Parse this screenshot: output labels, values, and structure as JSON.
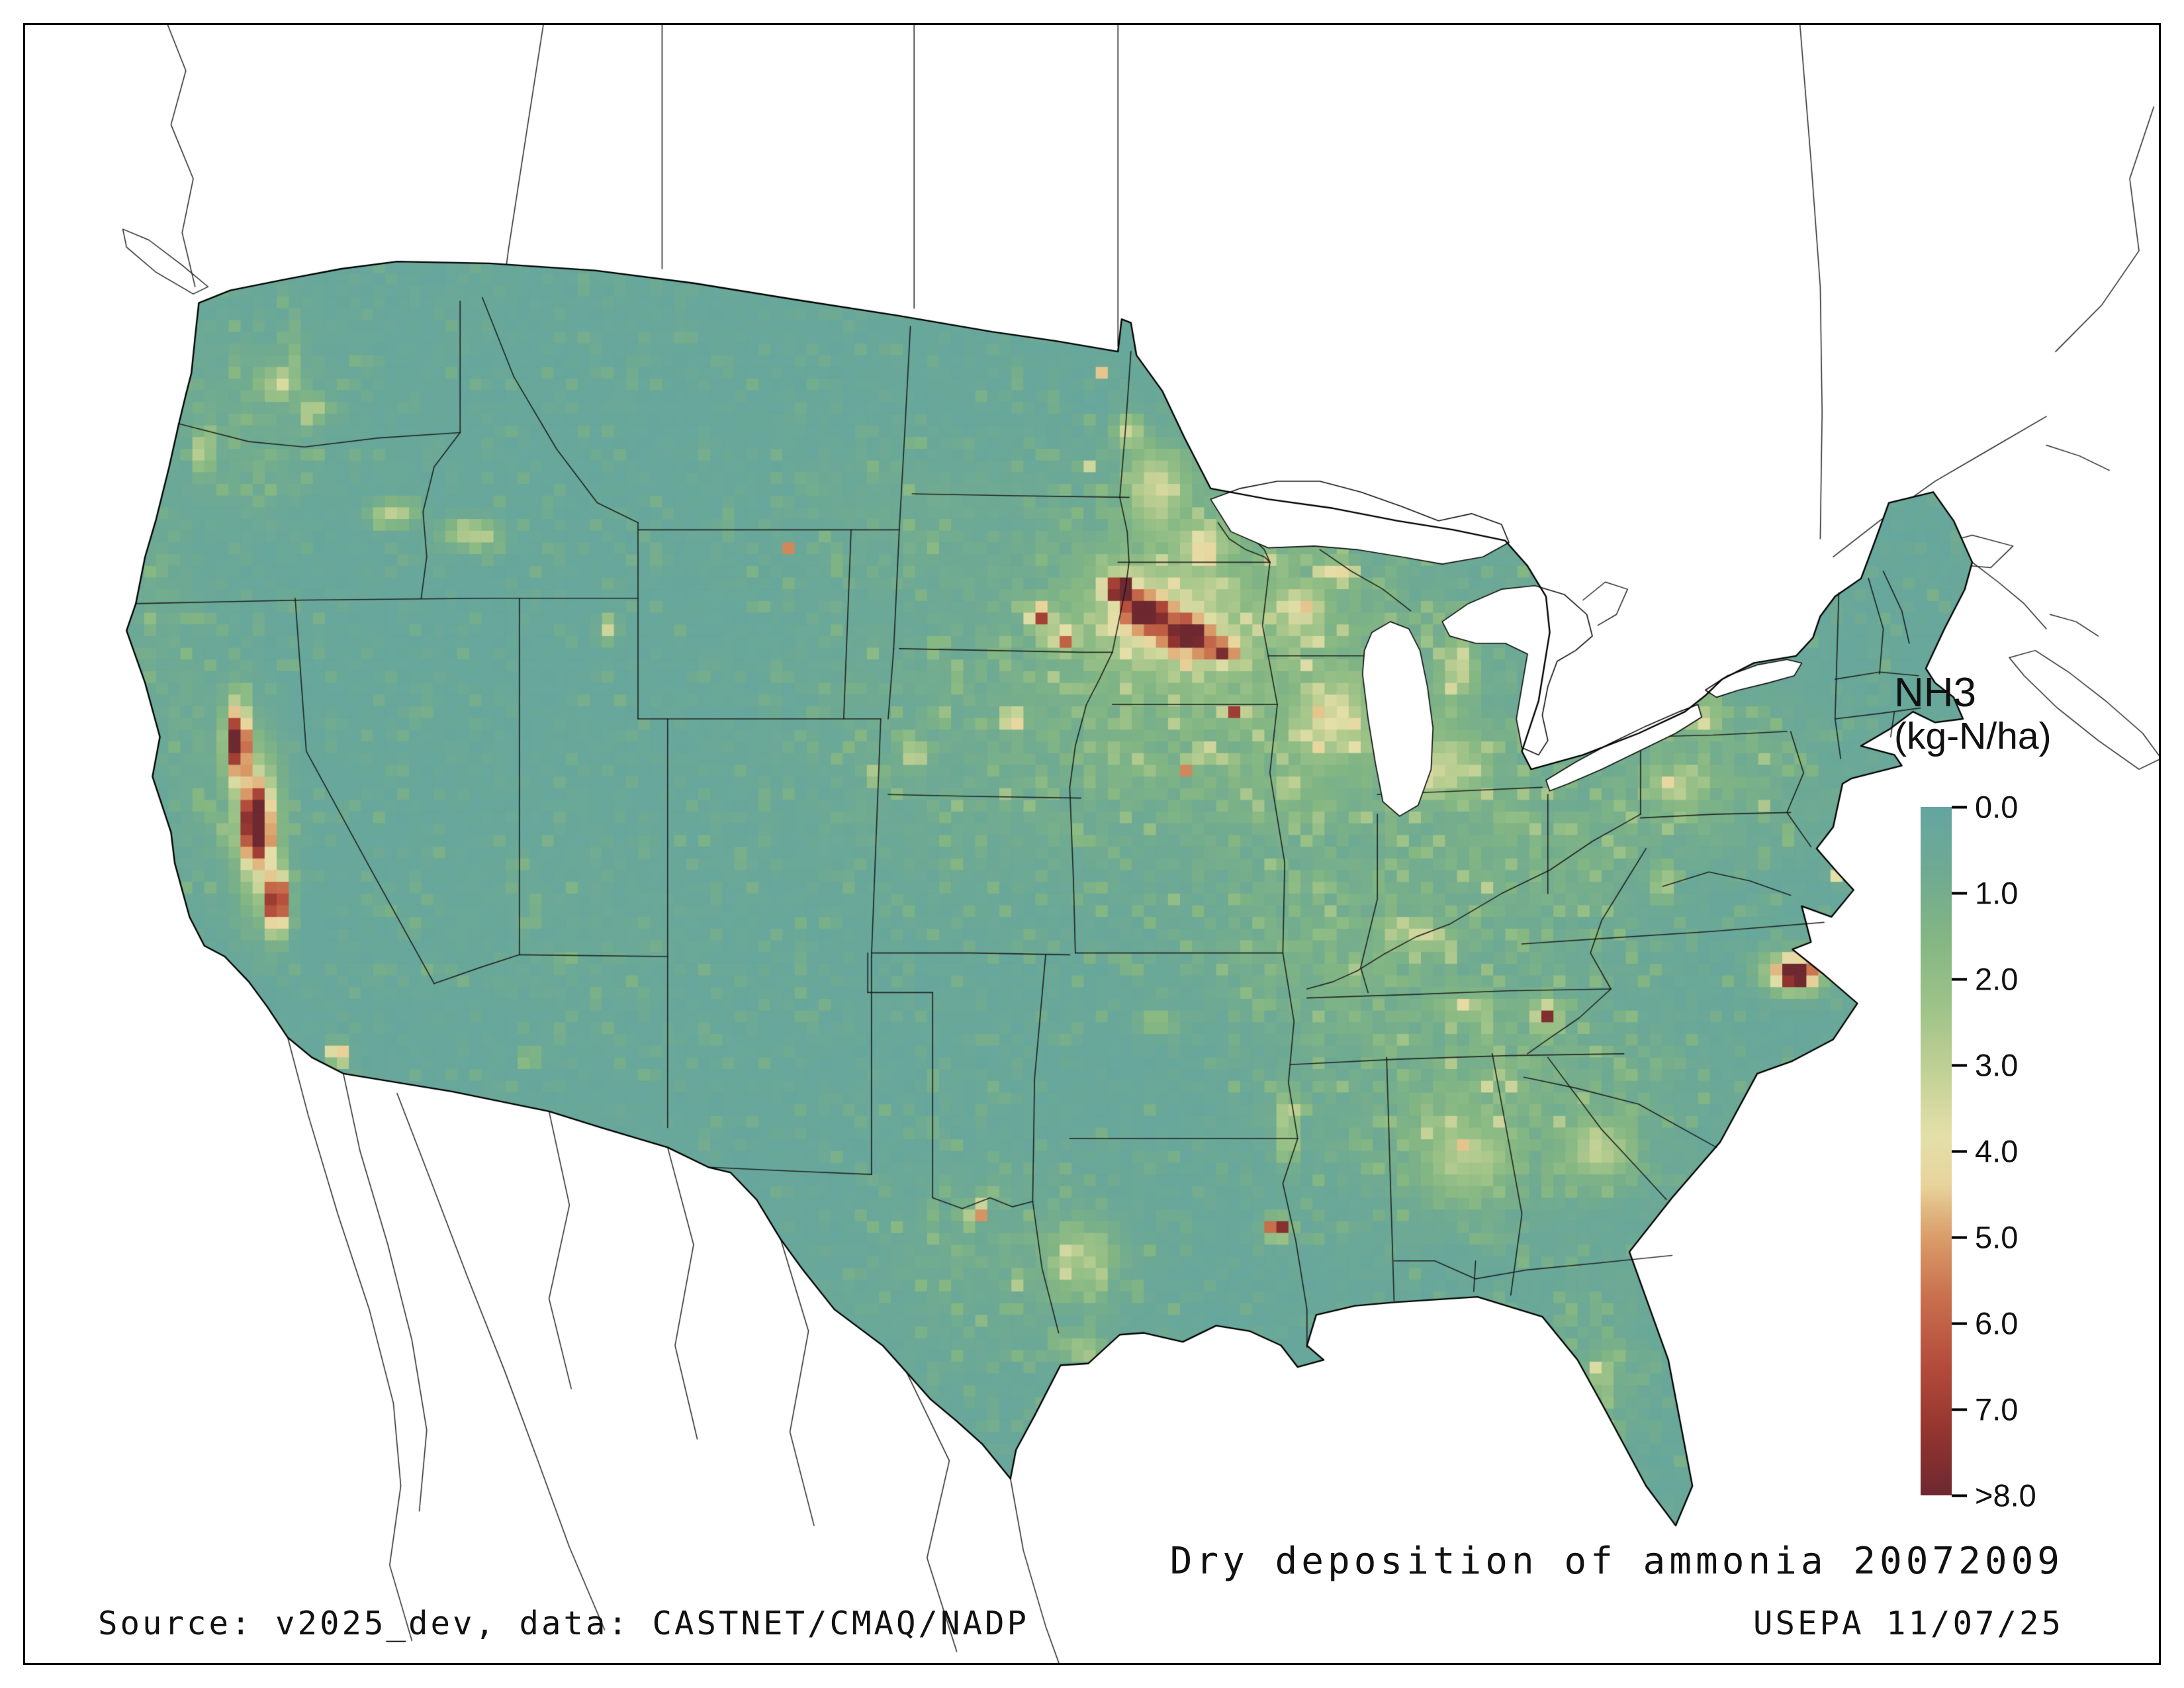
{
  "legend": {
    "title": "NH3",
    "units": "(kg-N/ha)",
    "ticks": [
      "0.0",
      "1.0",
      "2.0",
      "3.0",
      "4.0",
      "5.0",
      "6.0",
      "7.0",
      ">8.0"
    ],
    "value_range": [
      0,
      8
    ],
    "palette": [
      {
        "v": 0.0,
        "c": "#63a5a1"
      },
      {
        "v": 0.8,
        "c": "#6faa92"
      },
      {
        "v": 1.6,
        "c": "#83b683"
      },
      {
        "v": 2.4,
        "c": "#9cc288"
      },
      {
        "v": 3.2,
        "c": "#c0d094"
      },
      {
        "v": 4.0,
        "c": "#e4dfa9"
      },
      {
        "v": 4.6,
        "c": "#e8d49c"
      },
      {
        "v": 5.2,
        "c": "#dba06b"
      },
      {
        "v": 6.0,
        "c": "#c86f4d"
      },
      {
        "v": 6.8,
        "c": "#b44c3c"
      },
      {
        "v": 7.6,
        "c": "#94352f"
      },
      {
        "v": 8.4,
        "c": "#6d2830"
      }
    ]
  },
  "captions": {
    "title": "Dry deposition of ammonia 20072009",
    "source": "Source: v2025_dev, data: CASTNET/CMAQ/NADP",
    "agency": "USEPA 11/07/25"
  },
  "map": {
    "pollutant": "NH3",
    "quantity": "dry deposition",
    "period": "20072009",
    "base_value": 0.32,
    "ocean_color": "#ffffff",
    "hotspots": [
      [
        64,
        312,
        6,
        20,
        8.5
      ],
      [
        74,
        358,
        7,
        20,
        9.0
      ],
      [
        85,
        402,
        6,
        16,
        8.0
      ],
      [
        75,
        360,
        14,
        48,
        2.6
      ],
      [
        118,
        486,
        5,
        6,
        5.5
      ],
      [
        128,
        512,
        3,
        3,
        5.0
      ],
      [
        221,
        489,
        4,
        4,
        3.2
      ],
      [
        148,
        186,
        13,
        7,
        2.8
      ],
      [
        190,
        197,
        15,
        8,
        2.8
      ],
      [
        88,
        112,
        10,
        8,
        2.6
      ],
      [
        105,
        128,
        8,
        6,
        2.4
      ],
      [
        45,
        152,
        5,
        11,
        2.8
      ],
      [
        264,
        250,
        5,
        7,
        3.2
      ],
      [
        429,
        320,
        6,
        6,
        3.4
      ],
      [
        408,
        330,
        5,
        5,
        2.6
      ],
      [
        540,
        228,
        7,
        7,
        8.3
      ],
      [
        554,
        241,
        11,
        9,
        7.2
      ],
      [
        576,
        254,
        12,
        9,
        6.8
      ],
      [
        596,
        263,
        9,
        7,
        5.5
      ],
      [
        563,
        247,
        38,
        26,
        2.3
      ],
      [
        497,
        243,
        6,
        6,
        6.2
      ],
      [
        482,
        300,
        5,
        5,
        6.0
      ],
      [
        510,
        256,
        6,
        6,
        5.0
      ],
      [
        604,
        297,
        3,
        3,
        7.5
      ],
      [
        576,
        327,
        3,
        3,
        6.0
      ],
      [
        560,
        170,
        16,
        20,
        2.6
      ],
      [
        585,
        203,
        11,
        11,
        2.8
      ],
      [
        545,
        140,
        8,
        10,
        2.6
      ],
      [
        525,
        158,
        2.5,
        2.5,
        6.0
      ],
      [
        529,
        108,
        2.5,
        2.5,
        5.5
      ],
      [
        361,
        206,
        2.5,
        2.5,
        5.5
      ],
      [
        638,
        240,
        13,
        13,
        2.5
      ],
      [
        658,
        218,
        7,
        7,
        2.8
      ],
      [
        655,
        300,
        18,
        22,
        2.3
      ],
      [
        715,
        325,
        22,
        18,
        2.2
      ],
      [
        757,
        305,
        4,
        4,
        3.8
      ],
      [
        722,
        272,
        10,
        16,
        2.2
      ],
      [
        852,
        298,
        13,
        9,
        2.3
      ],
      [
        840,
        338,
        13,
        9,
        2.1
      ],
      [
        886,
        351,
        3,
        3,
        5.0
      ],
      [
        926,
        386,
        3,
        5,
        4.0
      ],
      [
        833,
        392,
        5,
        9,
        2.8
      ],
      [
        905,
        441,
        9,
        7,
        9.3
      ],
      [
        903,
        441,
        18,
        12,
        3.0
      ],
      [
        770,
        464,
        4,
        4,
        5.5
      ],
      [
        770,
        464,
        9,
        9,
        2.3
      ],
      [
        728,
        460,
        13,
        7,
        2.0
      ],
      [
        700,
        420,
        13,
        9,
        2.0
      ],
      [
        630,
        525,
        6,
        20,
        2.4
      ],
      [
        560,
        468,
        10,
        6,
        2.0
      ],
      [
        520,
        600,
        18,
        18,
        2.0
      ],
      [
        463,
        574,
        4,
        4,
        7.8
      ],
      [
        448,
        560,
        2.5,
        2.5,
        6.0
      ],
      [
        441,
        586,
        2.5,
        2.5,
        6.3
      ],
      [
        455,
        593,
        2.5,
        2.5,
        5.5
      ],
      [
        470,
        560,
        2.5,
        2.5,
        5.0
      ],
      [
        484,
        612,
        3,
        3,
        4.5
      ],
      [
        625,
        583,
        4,
        4,
        8.2
      ],
      [
        625,
        583,
        8,
        7,
        2.8
      ],
      [
        520,
        650,
        11,
        9,
        2.0
      ],
      [
        800,
        665,
        7,
        10,
        2.0
      ],
      [
        804,
        696,
        5,
        7,
        2.8
      ],
      [
        800,
        540,
        18,
        16,
        2.2
      ],
      [
        725,
        545,
        22,
        22,
        2.0
      ]
    ],
    "green_zones": [
      [
        620,
        300,
        130,
        80,
        1.35
      ],
      [
        580,
        215,
        85,
        55,
        1.1
      ],
      [
        740,
        510,
        95,
        68,
        1.15
      ],
      [
        855,
        330,
        60,
        48,
        0.95
      ],
      [
        70,
        135,
        45,
        55,
        0.7
      ],
      [
        45,
        330,
        22,
        70,
        0.55
      ],
      [
        20,
        240,
        18,
        50,
        0.6
      ],
      [
        450,
        310,
        90,
        90,
        0.42
      ],
      [
        480,
        600,
        65,
        55,
        0.7
      ],
      [
        800,
        665,
        28,
        48,
        0.75
      ],
      [
        420,
        180,
        60,
        40,
        0.35
      ],
      [
        250,
        420,
        80,
        60,
        0.18
      ],
      [
        650,
        430,
        70,
        45,
        0.9
      ],
      [
        760,
        380,
        60,
        40,
        0.9
      ]
    ]
  }
}
